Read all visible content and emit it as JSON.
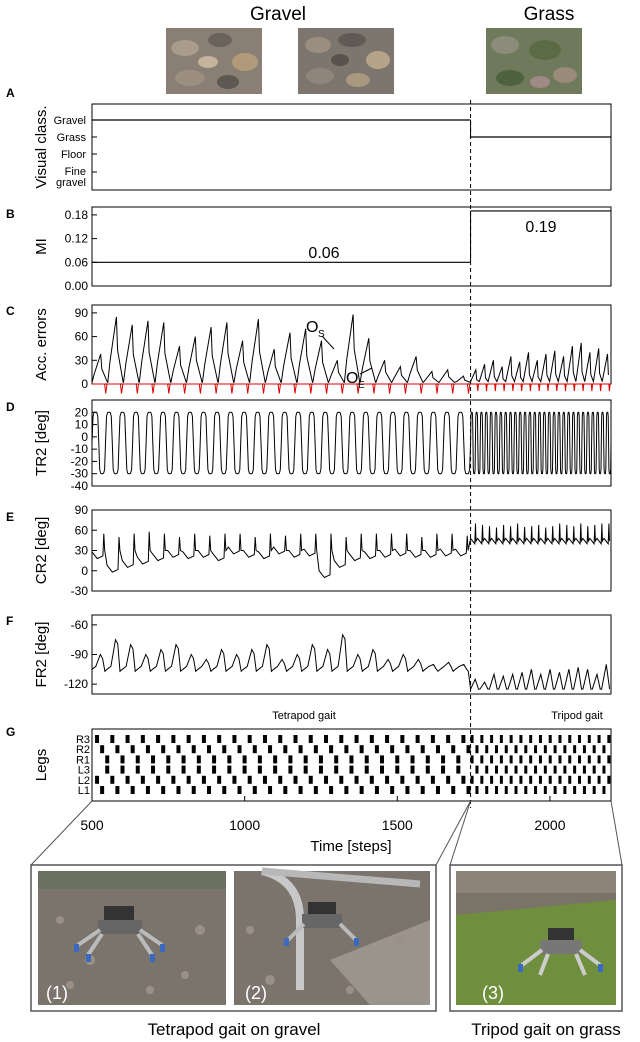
{
  "header": {
    "gravel_label": "Gravel",
    "grass_label": "Grass"
  },
  "colors": {
    "trace": "#000000",
    "error_trace": "#e00000",
    "gravel_photo_a": "#8a7f74",
    "gravel_photo_b": "#7d766e",
    "grass_photo": "#6f7a5c",
    "robot_photo_ground": "#7b746c",
    "grass_ground": "#6f8f3e"
  },
  "chart_data": [
    {
      "panel": "A",
      "type": "line",
      "ylabel": "Visual class.",
      "y_categories": [
        "Gravel",
        "Grass",
        "Floor",
        "Fine gravel"
      ],
      "x_switch": 1740,
      "series": [
        {
          "values": [
            {
              "x_start": 500,
              "x_end": 1740,
              "class": "Gravel"
            },
            {
              "x_start": 1740,
              "x_end": 2200,
              "class": "Grass"
            }
          ]
        }
      ]
    },
    {
      "panel": "B",
      "type": "line",
      "ylabel": "MI",
      "ylim": [
        0,
        0.2
      ],
      "yticks": [
        "0.00",
        "0.06",
        "0.12",
        "0.18"
      ],
      "series": [
        {
          "values": [
            {
              "x_start": 500,
              "x_end": 1740,
              "y": 0.06
            },
            {
              "x_start": 1740,
              "x_end": 2200,
              "y": 0.19
            }
          ]
        }
      ],
      "annotations": [
        "0.06",
        "0.19"
      ]
    },
    {
      "panel": "C",
      "type": "line",
      "ylabel": "Acc. errors",
      "ylim": [
        0,
        100
      ],
      "yticks": [
        "0",
        "30",
        "60",
        "90"
      ],
      "annotations": [
        "O",
        "S",
        "O",
        "E"
      ],
      "gravel_peaks": [
        38,
        85,
        75,
        80,
        78,
        48,
        60,
        72,
        78,
        55,
        82,
        44,
        65,
        70,
        55,
        30,
        88,
        58,
        30,
        22,
        35,
        16,
        18,
        10
      ],
      "grass_peaks": [
        18,
        25,
        30,
        22,
        35,
        28,
        40,
        30,
        38,
        42,
        35,
        48,
        52,
        40,
        45,
        38
      ]
    },
    {
      "panel": "D",
      "type": "line",
      "ylabel": "TR2 [deg]",
      "ylim": [
        -40,
        30
      ],
      "yticks": [
        "-40",
        "-30",
        "-20",
        "-10",
        "0",
        "10",
        "20"
      ],
      "gravel_cycles": 28,
      "grass_cycles": 29,
      "amplitude_range": [
        -30,
        20
      ]
    },
    {
      "panel": "E",
      "type": "line",
      "ylabel": "CR2 [deg]",
      "ylim": [
        -30,
        90
      ],
      "yticks": [
        "-30",
        "0",
        "30",
        "60",
        "90"
      ],
      "gravel_peaks": [
        55,
        50,
        55,
        58,
        55,
        50,
        55,
        52,
        55,
        55,
        50,
        55,
        52,
        55,
        55,
        55,
        50,
        55,
        55,
        55,
        55,
        50,
        55,
        55,
        52
      ],
      "gravel_troughs": [
        18,
        -2,
        5,
        10,
        15,
        20,
        18,
        20,
        15,
        25,
        20,
        18,
        25,
        20,
        22,
        -10,
        5,
        15,
        18,
        20,
        22,
        20,
        20,
        22,
        22
      ],
      "grass_peaks": [
        70,
        68,
        66,
        64,
        68,
        66,
        70,
        65,
        66,
        68,
        64,
        66,
        70,
        68,
        66,
        70,
        66,
        68,
        70,
        70
      ],
      "grass_base": 40
    },
    {
      "panel": "F",
      "type": "line",
      "ylabel": "FR2 [deg]",
      "ylim": [
        -130,
        -50
      ],
      "yticks": [
        "-120",
        "-90",
        "-60"
      ],
      "gravel_peaks": [
        -90,
        -75,
        -80,
        -90,
        -85,
        -80,
        -90,
        -95,
        -85,
        -90,
        -85,
        -80,
        -95,
        -90,
        -80,
        -85,
        -70,
        -90,
        -85,
        -95,
        -90,
        -95,
        -100,
        -98,
        -100
      ],
      "gravel_base": -105,
      "grass_peaks": [
        -115,
        -118,
        -110,
        -112,
        -110,
        -108,
        -105,
        -110,
        -105,
        -108,
        -105,
        -103,
        -105,
        -110,
        -100
      ],
      "grass_base": -125
    },
    {
      "panel": "G",
      "type": "table",
      "ylabel": "Legs",
      "rows": [
        "R3",
        "R2",
        "R1",
        "L3",
        "L2",
        "L1"
      ],
      "gait_labels": [
        "Tetrapod gait",
        "Tripod gait"
      ],
      "xlabel": "Time [steps]",
      "xlim": [
        500,
        2200
      ],
      "xticks": [
        "500",
        "1000",
        "1500",
        "2000"
      ],
      "gravel_period": 50,
      "grass_period": 32
    }
  ],
  "panel_letters": [
    "A",
    "B",
    "C",
    "D",
    "E",
    "F",
    "G"
  ],
  "photos": {
    "labels": [
      "(1)",
      "(2)",
      "(3)"
    ],
    "caption_gravel": "Tetrapod gait on gravel",
    "caption_grass": "Tripod gait on grass"
  }
}
